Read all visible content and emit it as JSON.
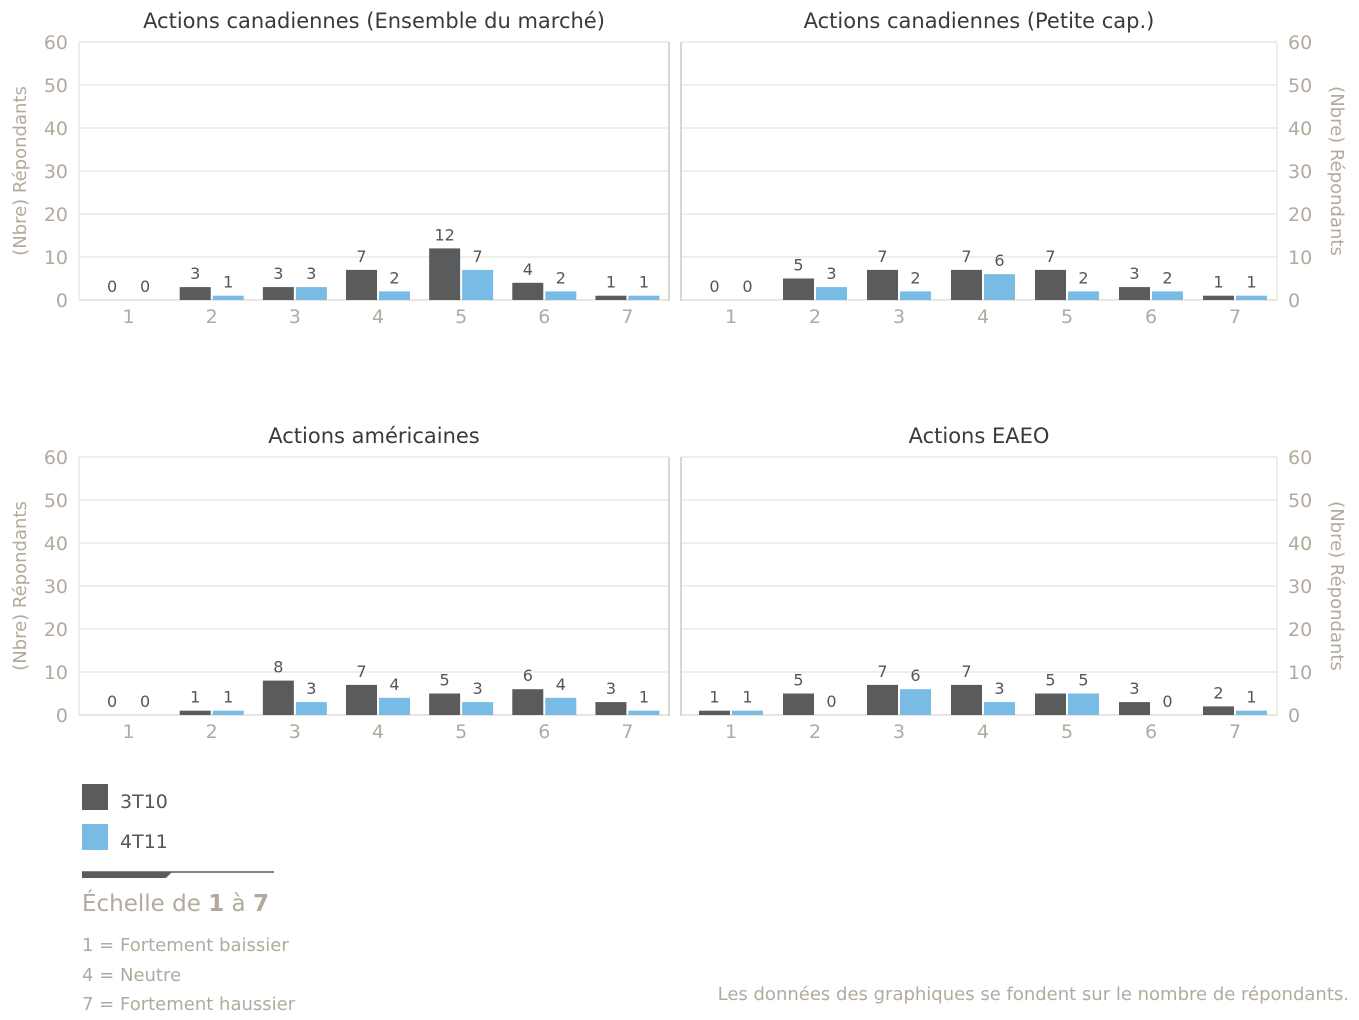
{
  "colors": {
    "series_dark": "#5a5b5d",
    "series_blue": "#78bce6",
    "axis_text": "#b3aa9d",
    "grid": "#e2ddd4",
    "value_label": "#555555"
  },
  "chart_data": [
    {
      "type": "bar",
      "title": "Actions canadiennes (Ensemble du marché)",
      "ylabel": "(Nbre) Répondants",
      "ylim": [
        0,
        60
      ],
      "yticks": [
        0,
        10,
        20,
        30,
        40,
        50,
        60
      ],
      "categories": [
        "1",
        "2",
        "3",
        "4",
        "5",
        "6",
        "7"
      ],
      "series": [
        {
          "name": "3T10",
          "values": [
            0,
            3,
            3,
            7,
            12,
            4,
            1
          ]
        },
        {
          "name": "4T11",
          "values": [
            0,
            1,
            3,
            2,
            7,
            2,
            1
          ]
        }
      ]
    },
    {
      "type": "bar",
      "title": "Actions canadiennes (Petite cap.)",
      "ylabel": "(Nbre) Répondants",
      "ylim": [
        0,
        60
      ],
      "yticks": [
        0,
        10,
        20,
        30,
        40,
        50,
        60
      ],
      "categories": [
        "1",
        "2",
        "3",
        "4",
        "5",
        "6",
        "7"
      ],
      "series": [
        {
          "name": "3T10",
          "values": [
            0,
            5,
            7,
            7,
            7,
            3,
            1
          ]
        },
        {
          "name": "4T11",
          "values": [
            0,
            3,
            2,
            6,
            2,
            2,
            1
          ]
        }
      ]
    },
    {
      "type": "bar",
      "title": "Actions américaines",
      "ylabel": "(Nbre) Répondants",
      "ylim": [
        0,
        60
      ],
      "yticks": [
        0,
        10,
        20,
        30,
        40,
        50,
        60
      ],
      "categories": [
        "1",
        "2",
        "3",
        "4",
        "5",
        "6",
        "7"
      ],
      "series": [
        {
          "name": "3T10",
          "values": [
            0,
            1,
            8,
            7,
            5,
            6,
            3
          ]
        },
        {
          "name": "4T11",
          "values": [
            0,
            1,
            3,
            4,
            3,
            4,
            1
          ]
        }
      ]
    },
    {
      "type": "bar",
      "title": "Actions EAEO",
      "ylabel": "(Nbre) Répondants",
      "ylim": [
        0,
        60
      ],
      "yticks": [
        0,
        10,
        20,
        30,
        40,
        50,
        60
      ],
      "categories": [
        "1",
        "2",
        "3",
        "4",
        "5",
        "6",
        "7"
      ],
      "series": [
        {
          "name": "3T10",
          "values": [
            1,
            5,
            7,
            7,
            5,
            3,
            2
          ]
        },
        {
          "name": "4T11",
          "values": [
            1,
            0,
            6,
            3,
            5,
            0,
            1
          ]
        }
      ]
    }
  ],
  "legend": [
    {
      "label": "3T10",
      "color": "#5a5b5d"
    },
    {
      "label": "4T11",
      "color": "#78bce6"
    }
  ],
  "scale": {
    "title_prefix": "Échelle de ",
    "title_low": "1",
    "title_mid": " à ",
    "title_high": "7",
    "lines": [
      "1 = Fortement baissier",
      "4 = Neutre",
      "7 = Fortement haussier"
    ]
  },
  "note": "Les données des graphiques se fondent sur le nombre de répondants."
}
